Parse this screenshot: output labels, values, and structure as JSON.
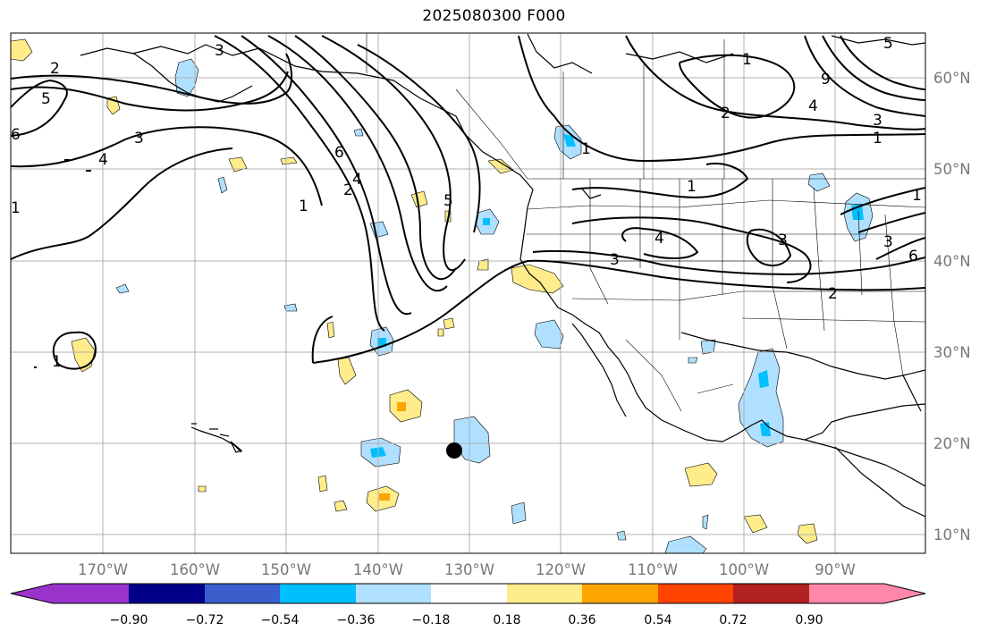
{
  "title": "2025080300 F000",
  "map": {
    "lon_ticks": [
      "170°W",
      "160°W",
      "150°W",
      "140°W",
      "130°W",
      "120°W",
      "110°W",
      "100°W",
      "90°W"
    ],
    "lat_ticks": [
      "60°N",
      "50°N",
      "40°N",
      "30°N",
      "20°N",
      "10°N"
    ],
    "gridlines": true,
    "contour_labels": [
      "2",
      "5",
      "4",
      "3",
      "6",
      "1",
      "3",
      "6",
      "2",
      "1",
      "4",
      "5",
      "1",
      "2",
      "1",
      "9",
      "5",
      "4",
      "3",
      "1",
      "1",
      "4",
      "3",
      "3",
      "2",
      "3",
      "1",
      "1",
      "6"
    ],
    "marker": "filled-black-dot",
    "colors": {
      "coast": "#000000",
      "grid": "#b0b0b0",
      "ocean": "#ffffff"
    }
  },
  "colorbar": {
    "tick_labels": [
      "−0.90",
      "−0.72",
      "−0.54",
      "−0.36",
      "−0.18",
      "0.18",
      "0.36",
      "0.54",
      "0.72",
      "0.90"
    ],
    "colors": [
      "#9933cc",
      "#00008b",
      "#3a5fcd",
      "#00bfff",
      "#b0e0ff",
      "#ffffff",
      "#ffec8b",
      "#ffa500",
      "#ff4500",
      "#b22222",
      "#ff88aa"
    ]
  }
}
